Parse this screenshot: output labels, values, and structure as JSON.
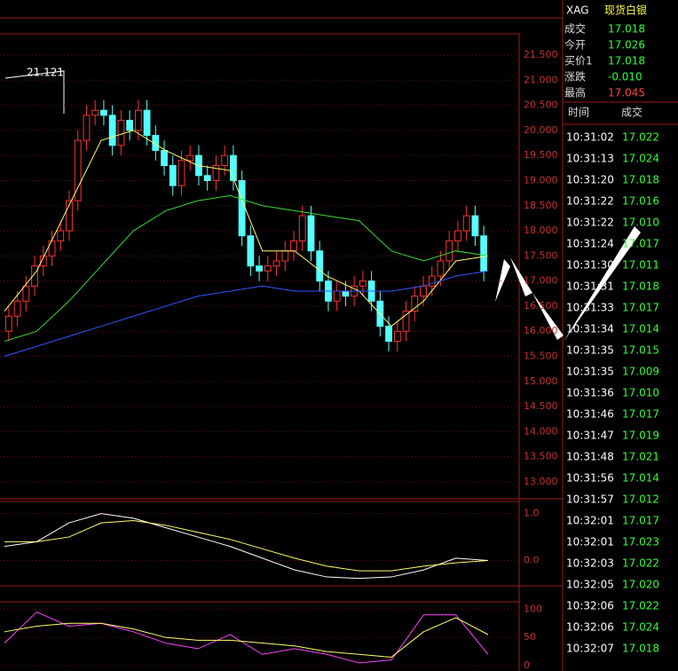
{
  "header": {
    "symbol": "XAG",
    "name": "现货白银"
  },
  "quote": [
    {
      "label": "成交",
      "value": "17.018"
    },
    {
      "label": "今开",
      "value": "17.026"
    },
    {
      "label": "买价1",
      "value": "17.018"
    },
    {
      "label": "涨跌",
      "value": "-0.010"
    },
    {
      "label": "最高",
      "value": "17.045"
    }
  ],
  "trades": {
    "headers": [
      "时间",
      "成交"
    ],
    "rows": [
      [
        "10:31:02",
        "17.022"
      ],
      [
        "10:31:13",
        "17.024"
      ],
      [
        "10:31:20",
        "17.018"
      ],
      [
        "10:31:22",
        "17.016"
      ],
      [
        "10:31:22",
        "17.010"
      ],
      [
        "10:31:24",
        "17.017"
      ],
      [
        "10:31:30",
        "17.011"
      ],
      [
        "10:31:31",
        "17.018"
      ],
      [
        "10:31:33",
        "17.017"
      ],
      [
        "10:31:34",
        "17.014"
      ],
      [
        "10:31:35",
        "17.015"
      ],
      [
        "10:31:35",
        "17.009"
      ],
      [
        "10:31:36",
        "17.010"
      ],
      [
        "10:31:46",
        "17.017"
      ],
      [
        "10:31:47",
        "17.019"
      ],
      [
        "10:31:48",
        "17.021"
      ],
      [
        "10:31:56",
        "17.014"
      ],
      [
        "10:31:57",
        "17.012"
      ],
      [
        "10:32:01",
        "17.017"
      ],
      [
        "10:32:01",
        "17.023"
      ],
      [
        "10:32:03",
        "17.022"
      ],
      [
        "10:32:05",
        "17.020"
      ],
      [
        "10:32:06",
        "17.022"
      ],
      [
        "10:32:06",
        "17.024"
      ],
      [
        "10:32:07",
        "17.018"
      ]
    ]
  },
  "chart_data": {
    "type": "candlestick",
    "annotation": "21.121",
    "ylim": [
      13.0,
      21.5
    ],
    "yticks": [
      {
        "value": 21.5,
        "label": "21.500"
      },
      {
        "value": 21.0,
        "label": "21.000"
      },
      {
        "value": 20.5,
        "label": "20.500"
      },
      {
        "value": 20.0,
        "label": "20.000"
      },
      {
        "value": 19.5,
        "label": "19.500"
      },
      {
        "value": 19.0,
        "label": "19.000"
      },
      {
        "value": 18.5,
        "label": "18.500"
      },
      {
        "value": 18.0,
        "label": "18.000"
      },
      {
        "value": 17.5,
        "label": "17.500"
      },
      {
        "value": 17.0,
        "label": "17.000"
      },
      {
        "value": 16.5,
        "label": "16.500"
      },
      {
        "value": 16.0,
        "label": "16.000"
      },
      {
        "value": 15.5,
        "label": "15.500"
      },
      {
        "value": 15.0,
        "label": "15.000"
      },
      {
        "value": 14.5,
        "label": "14.500"
      },
      {
        "value": 14.0,
        "label": "14.000"
      },
      {
        "value": 13.5,
        "label": "13.500"
      },
      {
        "value": 13.0,
        "label": "13.000"
      }
    ],
    "open": [
      16.0,
      16.3,
      16.6,
      16.9,
      17.3,
      17.5,
      17.8,
      18.0,
      18.6,
      19.8,
      20.3,
      20.4,
      20.3,
      19.7,
      20.2,
      20.0,
      20.4,
      19.9,
      19.6,
      19.3,
      18.9,
      19.4,
      19.5,
      19.1,
      19.0,
      19.3,
      19.5,
      19.0,
      17.9,
      17.3,
      17.2,
      17.3,
      17.4,
      17.6,
      17.8,
      18.3,
      17.6,
      17.0,
      16.6,
      16.8,
      16.7,
      16.9,
      17.0,
      16.6,
      16.1,
      15.8,
      16.0,
      16.4,
      16.7,
      16.9,
      17.1,
      17.4,
      17.8,
      18.0,
      18.3,
      17.9
    ],
    "high": [
      16.5,
      16.8,
      17.1,
      17.5,
      17.7,
      18.0,
      18.2,
      18.8,
      20.0,
      20.5,
      20.6,
      20.6,
      20.5,
      20.4,
      20.4,
      20.6,
      20.6,
      20.1,
      19.8,
      19.5,
      19.6,
      19.7,
      19.7,
      19.3,
      19.5,
      19.7,
      19.7,
      19.2,
      18.1,
      17.5,
      17.5,
      17.6,
      17.8,
      18.0,
      18.5,
      18.5,
      17.8,
      17.2,
      17.0,
      17.0,
      17.1,
      17.2,
      17.2,
      16.8,
      16.3,
      16.2,
      16.6,
      16.9,
      17.1,
      17.3,
      17.6,
      18.0,
      18.2,
      18.5,
      18.5,
      18.1
    ],
    "low": [
      15.8,
      16.1,
      16.4,
      16.7,
      17.1,
      17.3,
      17.6,
      17.8,
      18.4,
      19.6,
      20.1,
      20.1,
      19.5,
      19.5,
      19.8,
      19.8,
      19.7,
      19.4,
      19.1,
      18.7,
      18.7,
      19.2,
      18.9,
      18.8,
      18.8,
      19.1,
      18.8,
      17.7,
      17.1,
      17.0,
      17.0,
      17.1,
      17.2,
      17.4,
      17.6,
      17.4,
      16.8,
      16.4,
      16.4,
      16.5,
      16.5,
      16.7,
      16.4,
      15.9,
      15.6,
      15.6,
      15.8,
      16.2,
      16.5,
      16.7,
      16.9,
      17.2,
      17.6,
      17.8,
      17.7,
      17.0
    ],
    "close": [
      16.3,
      16.6,
      16.9,
      17.3,
      17.5,
      17.8,
      18.0,
      18.6,
      19.8,
      20.3,
      20.4,
      20.3,
      19.7,
      20.2,
      20.0,
      20.4,
      19.9,
      19.6,
      19.3,
      18.9,
      19.4,
      19.5,
      19.1,
      19.0,
      19.3,
      19.5,
      19.0,
      17.9,
      17.3,
      17.2,
      17.3,
      17.4,
      17.6,
      17.8,
      18.3,
      17.6,
      17.0,
      16.6,
      16.8,
      16.7,
      16.9,
      17.0,
      16.6,
      16.1,
      15.8,
      16.0,
      16.4,
      16.7,
      16.9,
      17.1,
      17.4,
      17.8,
      18.0,
      18.3,
      17.9,
      17.2
    ],
    "series": [
      {
        "color": "#ffff66",
        "values": [
          16.4,
          17.2,
          18.5,
          19.8,
          20.0,
          19.6,
          19.3,
          19.2,
          17.6,
          17.6,
          17.1,
          16.8,
          16.1,
          16.6,
          17.4,
          17.5
        ]
      },
      {
        "color": "#33dd33",
        "values": [
          15.8,
          16.0,
          16.6,
          17.3,
          18.0,
          18.4,
          18.6,
          18.7,
          18.5,
          18.4,
          18.3,
          18.2,
          17.6,
          17.4,
          17.6,
          17.5
        ]
      },
      {
        "color": "#3355ff",
        "values": [
          15.5,
          15.7,
          15.9,
          16.1,
          16.3,
          16.5,
          16.7,
          16.8,
          16.9,
          16.8,
          16.8,
          16.8,
          16.8,
          16.9,
          17.1,
          17.2
        ]
      }
    ],
    "macd": {
      "ylim": [
        -0.5,
        1.2
      ],
      "yticks": [
        {
          "value": 1.0,
          "label": "1.0"
        },
        {
          "value": 0.0,
          "label": "0.0"
        }
      ],
      "series": [
        {
          "color": "#ffffff",
          "values": [
            0.3,
            0.4,
            0.8,
            1.0,
            0.9,
            0.7,
            0.5,
            0.3,
            0.05,
            -0.2,
            -0.35,
            -0.38,
            -0.35,
            -0.2,
            0.05,
            0.0
          ]
        },
        {
          "color": "#ffff66",
          "values": [
            0.4,
            0.4,
            0.5,
            0.8,
            0.85,
            0.75,
            0.6,
            0.45,
            0.25,
            0.05,
            -0.12,
            -0.22,
            -0.22,
            -0.12,
            -0.05,
            0.0
          ]
        }
      ]
    },
    "kdj": {
      "ylim": [
        0,
        110
      ],
      "yticks": [
        100,
        50,
        0
      ],
      "series": [
        {
          "color": "#ff44ff",
          "values": [
            40,
            95,
            70,
            75,
            60,
            40,
            30,
            55,
            20,
            30,
            20,
            5,
            10,
            90,
            90,
            20
          ]
        },
        {
          "color": "#ffff66",
          "values": [
            60,
            70,
            75,
            75,
            65,
            50,
            45,
            45,
            40,
            35,
            25,
            20,
            15,
            60,
            85,
            55
          ]
        }
      ]
    }
  }
}
